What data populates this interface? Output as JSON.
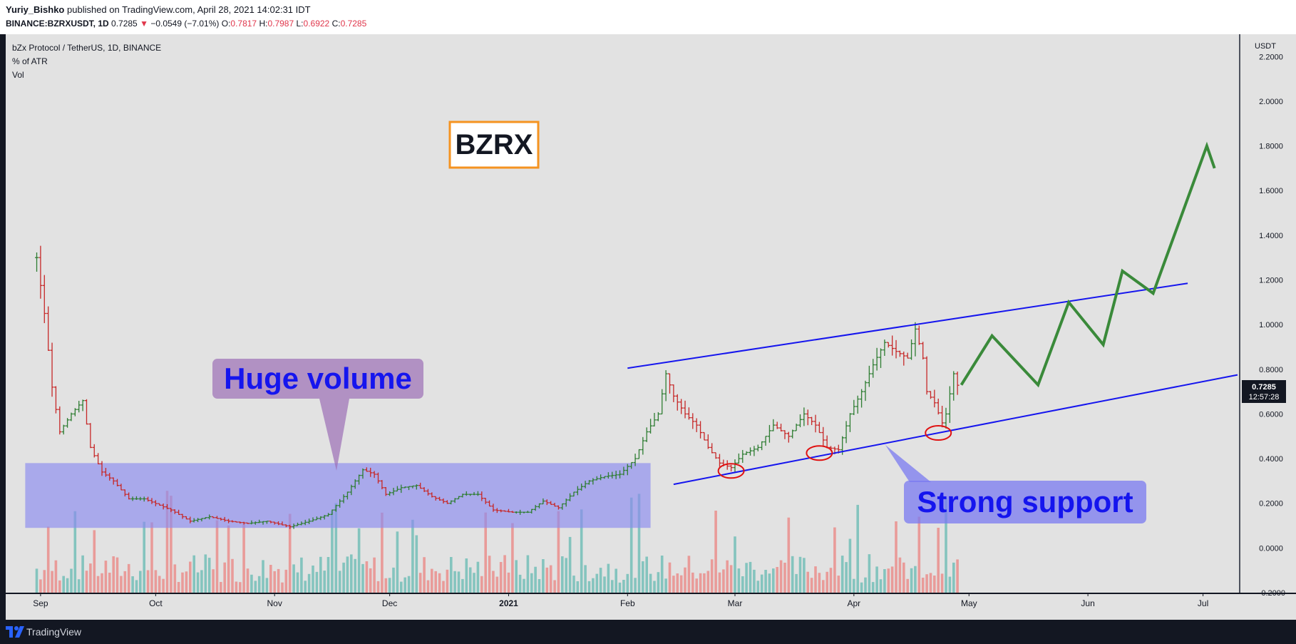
{
  "header": {
    "author": "Yuriy_Bishko",
    "published_text": "published on TradingView.com, April 28, 2021 14:02:31 IDT",
    "symbol_line": "BINANCE:BZRXUSDT, 1D",
    "last_price": "0.7285",
    "change_arrow": "▼",
    "change": "−0.0549 (−7.01%)",
    "o_label": "O:",
    "o_value": "0.7817",
    "h_label": "H:",
    "h_value": "0.7987",
    "l_label": "L:",
    "l_value": "0.6922",
    "c_label": "C:",
    "c_value": "0.7285"
  },
  "legend": {
    "title": "bZx Protocol / TetherUS, 1D, BINANCE",
    "indicator1": "% of ATR",
    "indicator2": "Vol"
  },
  "footer": {
    "brand": "TradingView"
  },
  "colors": {
    "up": "#26a69a",
    "down": "#ef5350",
    "channel": "#1515ee",
    "projection": "#3a8a3a",
    "zone": "#8a8af0",
    "callout": "#9c6fb6",
    "logo_border": "#f59320"
  },
  "annotations": {
    "ticker_box": "BZRX",
    "huge_volume": "Huge volume",
    "strong_support": "Strong support"
  },
  "chart_data": {
    "type": "ohlc",
    "currency_label": "USDT",
    "ylim": [
      -0.2,
      2.3
    ],
    "y_ticks": [
      "2.2000",
      "2.0000",
      "1.8000",
      "1.6000",
      "1.4000",
      "1.2000",
      "1.0000",
      "0.8000",
      "0.6000",
      "0.4000",
      "0.2000",
      "0.0000",
      "−0.2000"
    ],
    "y_tick_values": [
      2.2,
      2.0,
      1.8,
      1.6,
      1.4,
      1.2,
      1.0,
      0.8,
      0.6,
      0.4,
      0.2,
      0.0,
      -0.2
    ],
    "x_range": [
      "2020-08-27",
      "2021-07-10"
    ],
    "x_ticks": [
      {
        "label": "Sep",
        "date": "2020-09-01"
      },
      {
        "label": "Oct",
        "date": "2020-10-01"
      },
      {
        "label": "Nov",
        "date": "2020-11-01"
      },
      {
        "label": "Dec",
        "date": "2020-12-01"
      },
      {
        "label": "2021",
        "date": "2021-01-01"
      },
      {
        "label": "Feb",
        "date": "2021-02-01"
      },
      {
        "label": "Mar",
        "date": "2021-03-01"
      },
      {
        "label": "Apr",
        "date": "2021-04-01"
      },
      {
        "label": "May",
        "date": "2021-05-01"
      },
      {
        "label": "Jun",
        "date": "2021-06-01"
      },
      {
        "label": "Jul",
        "date": "2021-07-01"
      }
    ],
    "price_series": [
      {
        "date": "2020-08-31",
        "close": 1.3
      },
      {
        "date": "2020-09-02",
        "close": 1.05
      },
      {
        "date": "2020-09-04",
        "close": 0.72
      },
      {
        "date": "2020-09-06",
        "close": 0.52
      },
      {
        "date": "2020-09-09",
        "close": 0.6
      },
      {
        "date": "2020-09-12",
        "close": 0.66
      },
      {
        "date": "2020-09-14",
        "close": 0.45
      },
      {
        "date": "2020-09-17",
        "close": 0.34
      },
      {
        "date": "2020-09-20",
        "close": 0.3
      },
      {
        "date": "2020-09-24",
        "close": 0.22
      },
      {
        "date": "2020-09-28",
        "close": 0.22
      },
      {
        "date": "2020-10-05",
        "close": 0.17
      },
      {
        "date": "2020-10-10",
        "close": 0.12
      },
      {
        "date": "2020-10-15",
        "close": 0.14
      },
      {
        "date": "2020-10-20",
        "close": 0.12
      },
      {
        "date": "2020-10-25",
        "close": 0.11
      },
      {
        "date": "2020-10-30",
        "close": 0.12
      },
      {
        "date": "2020-11-05",
        "close": 0.095
      },
      {
        "date": "2020-11-10",
        "close": 0.12
      },
      {
        "date": "2020-11-15",
        "close": 0.15
      },
      {
        "date": "2020-11-20",
        "close": 0.25
      },
      {
        "date": "2020-11-24",
        "close": 0.35
      },
      {
        "date": "2020-11-27",
        "close": 0.33
      },
      {
        "date": "2020-11-30",
        "close": 0.24
      },
      {
        "date": "2020-12-04",
        "close": 0.27
      },
      {
        "date": "2020-12-08",
        "close": 0.28
      },
      {
        "date": "2020-12-12",
        "close": 0.23
      },
      {
        "date": "2020-12-16",
        "close": 0.2
      },
      {
        "date": "2020-12-20",
        "close": 0.24
      },
      {
        "date": "2020-12-24",
        "close": 0.24
      },
      {
        "date": "2020-12-28",
        "close": 0.17
      },
      {
        "date": "2021-01-02",
        "close": 0.16
      },
      {
        "date": "2021-01-06",
        "close": 0.16
      },
      {
        "date": "2021-01-10",
        "close": 0.21
      },
      {
        "date": "2021-01-14",
        "close": 0.18
      },
      {
        "date": "2021-01-18",
        "close": 0.25
      },
      {
        "date": "2021-01-22",
        "close": 0.3
      },
      {
        "date": "2021-01-26",
        "close": 0.32
      },
      {
        "date": "2021-01-30",
        "close": 0.33
      },
      {
        "date": "2021-02-03",
        "close": 0.4
      },
      {
        "date": "2021-02-06",
        "close": 0.52
      },
      {
        "date": "2021-02-09",
        "close": 0.6
      },
      {
        "date": "2021-02-11",
        "close": 0.78
      },
      {
        "date": "2021-02-13",
        "close": 0.68
      },
      {
        "date": "2021-02-16",
        "close": 0.6
      },
      {
        "date": "2021-02-19",
        "close": 0.55
      },
      {
        "date": "2021-02-22",
        "close": 0.45
      },
      {
        "date": "2021-02-25",
        "close": 0.38
      },
      {
        "date": "2021-02-28",
        "close": 0.36
      },
      {
        "date": "2021-03-03",
        "close": 0.42
      },
      {
        "date": "2021-03-07",
        "close": 0.45
      },
      {
        "date": "2021-03-11",
        "close": 0.55
      },
      {
        "date": "2021-03-15",
        "close": 0.5
      },
      {
        "date": "2021-03-19",
        "close": 0.6
      },
      {
        "date": "2021-03-22",
        "close": 0.55
      },
      {
        "date": "2021-03-25",
        "close": 0.45
      },
      {
        "date": "2021-03-28",
        "close": 0.44
      },
      {
        "date": "2021-03-31",
        "close": 0.6
      },
      {
        "date": "2021-04-03",
        "close": 0.7
      },
      {
        "date": "2021-04-06",
        "close": 0.82
      },
      {
        "date": "2021-04-09",
        "close": 0.92
      },
      {
        "date": "2021-04-12",
        "close": 0.88
      },
      {
        "date": "2021-04-15",
        "close": 0.85
      },
      {
        "date": "2021-04-17",
        "close": 0.98
      },
      {
        "date": "2021-04-19",
        "close": 0.85
      },
      {
        "date": "2021-04-20",
        "close": 0.7
      },
      {
        "date": "2021-04-22",
        "close": 0.65
      },
      {
        "date": "2021-04-24",
        "close": 0.56
      },
      {
        "date": "2021-04-25",
        "close": 0.6
      },
      {
        "date": "2021-04-27",
        "close": 0.78
      },
      {
        "date": "2021-04-28",
        "close": 0.7285
      }
    ],
    "channel_upper": {
      "from": {
        "date": "2021-02-01",
        "value": 0.805
      },
      "to": {
        "date": "2021-06-27",
        "value": 1.185
      }
    },
    "channel_lower": {
      "from": {
        "date": "2021-02-13",
        "value": 0.285
      },
      "to": {
        "date": "2021-07-10",
        "value": 0.775
      }
    },
    "projection_path": [
      {
        "date": "2021-04-29",
        "value": 0.73
      },
      {
        "date": "2021-05-07",
        "value": 0.95
      },
      {
        "date": "2021-05-19",
        "value": 0.73
      },
      {
        "date": "2021-05-27",
        "value": 1.1
      },
      {
        "date": "2021-06-05",
        "value": 0.91
      },
      {
        "date": "2021-06-10",
        "value": 1.24
      },
      {
        "date": "2021-06-18",
        "value": 1.14
      },
      {
        "date": "2021-07-02",
        "value": 1.8
      },
      {
        "date": "2021-07-04",
        "value": 1.7
      }
    ],
    "support_touches": [
      {
        "date": "2021-02-28",
        "value": 0.345
      },
      {
        "date": "2021-03-23",
        "value": 0.425
      },
      {
        "date": "2021-04-23",
        "value": 0.515
      }
    ],
    "consolidation_zone": {
      "from": "2020-08-28",
      "to": "2021-02-07",
      "low": 0.09,
      "high": 0.38
    },
    "last_price_tag": {
      "price": "0.7285",
      "countdown": "12:57:28"
    }
  }
}
